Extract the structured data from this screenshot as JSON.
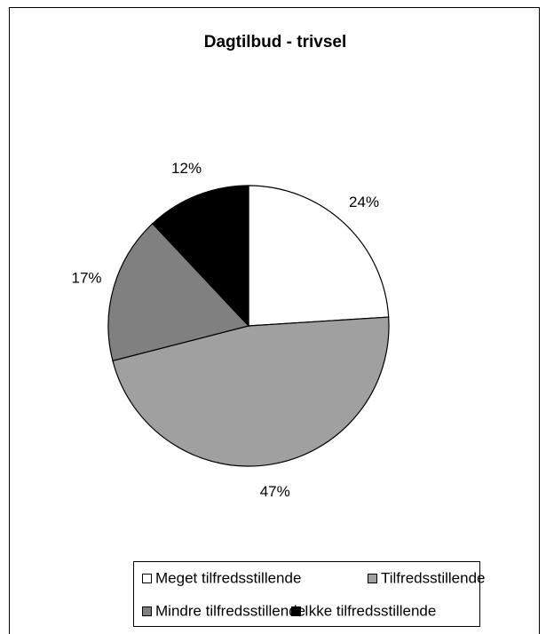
{
  "chart_data": {
    "type": "pie",
    "title": "Dagtilbud -  trivsel",
    "categories": [
      "Meget tilfredsstillende",
      "Tilfredsstillende",
      "Mindre tilfredsstillende",
      "Ikke tilfredsstillende"
    ],
    "values": [
      24,
      47,
      17,
      12
    ],
    "value_labels": [
      "24%",
      "47%",
      "17%",
      "12%"
    ],
    "colors": [
      "#ffffff",
      "#a0a0a0",
      "#808080",
      "#000000"
    ],
    "legend": "bottom"
  }
}
